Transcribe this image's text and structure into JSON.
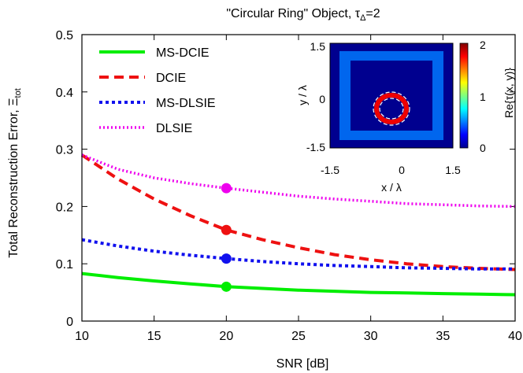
{
  "chart_data": {
    "type": "line",
    "title_prefix": "\"Circular Ring\" Object, ",
    "title_symbol": "τ",
    "title_subscript": "Δ",
    "title_suffix": "=2",
    "xlabel": "SNR [dB]",
    "ylabel_main": "Total Reconstruction Error, ",
    "ylabel_symbol": "Ξ",
    "ylabel_subscript": "tot",
    "xlim": [
      10,
      40
    ],
    "ylim": [
      0,
      0.5
    ],
    "xticks": [
      10,
      15,
      20,
      25,
      30,
      35,
      40
    ],
    "yticks": [
      0,
      0.1,
      0.2,
      0.3,
      0.4,
      0.5
    ],
    "xtick_labels": [
      "10",
      "15",
      "20",
      "25",
      "30",
      "35",
      "40"
    ],
    "ytick_labels": [
      "0",
      "0.1",
      "0.2",
      "0.3",
      "0.4",
      "0.5"
    ],
    "legend_position": "top-left",
    "series": [
      {
        "name": "MS-DCIE",
        "color": "#00ee00",
        "dash": "solid",
        "x": [
          10,
          12.5,
          15,
          17.5,
          20,
          22.5,
          25,
          27.5,
          30,
          32.5,
          35,
          37.5,
          40
        ],
        "values": [
          0.083,
          0.076,
          0.07,
          0.065,
          0.06,
          0.057,
          0.054,
          0.052,
          0.05,
          0.049,
          0.048,
          0.047,
          0.046
        ],
        "marker": {
          "x": 20,
          "y": 0.06
        }
      },
      {
        "name": "DCIE",
        "color": "#ee1111",
        "dash": "dashed",
        "x": [
          10,
          12.5,
          15,
          17.5,
          20,
          22.5,
          25,
          27.5,
          30,
          32.5,
          35,
          37.5,
          40
        ],
        "values": [
          0.29,
          0.248,
          0.213,
          0.184,
          0.159,
          0.142,
          0.128,
          0.116,
          0.107,
          0.1,
          0.095,
          0.092,
          0.09
        ],
        "marker": {
          "x": 20,
          "y": 0.159
        }
      },
      {
        "name": "MS-DLSIE",
        "color": "#1111ee",
        "dash": "dotted",
        "x": [
          10,
          12.5,
          15,
          17.5,
          20,
          22.5,
          25,
          27.5,
          30,
          32.5,
          35,
          37.5,
          40
        ],
        "values": [
          0.142,
          0.131,
          0.122,
          0.115,
          0.109,
          0.104,
          0.1,
          0.097,
          0.095,
          0.093,
          0.092,
          0.091,
          0.091
        ],
        "marker": {
          "x": 20,
          "y": 0.109
        }
      },
      {
        "name": "DLSIE",
        "color": "#ee00ee",
        "dash": "finedotted",
        "x": [
          10,
          12.5,
          15,
          17.5,
          20,
          22.5,
          25,
          27.5,
          30,
          32.5,
          35,
          37.5,
          40
        ],
        "values": [
          0.29,
          0.265,
          0.25,
          0.24,
          0.232,
          0.225,
          0.218,
          0.213,
          0.209,
          0.205,
          0.203,
          0.201,
          0.2
        ],
        "marker": {
          "x": 20,
          "y": 0.232
        }
      }
    ],
    "inset": {
      "type": "heatmap",
      "xlabel": "x / λ",
      "ylabel": "y / λ",
      "xlim": [
        -1.5,
        1.5
      ],
      "ylim": [
        -1.5,
        1.5
      ],
      "xtick_labels": [
        "-1.5",
        "0",
        "1.5"
      ],
      "ytick_labels": [
        "-1.5",
        "0",
        "1.5"
      ],
      "colorbar_label": "Re{τ(x, y)}",
      "colorbar_range": [
        0,
        2
      ],
      "colorbar_tick_labels": [
        "0",
        "1",
        "2"
      ],
      "background_value": 0,
      "square_frame_value": 0.6,
      "ring_value": 2,
      "ring_center": [
        0,
        -0.3
      ],
      "ring_outer_radius": 0.45,
      "ring_inner_radius": 0.3,
      "dashed_outline": true
    }
  }
}
